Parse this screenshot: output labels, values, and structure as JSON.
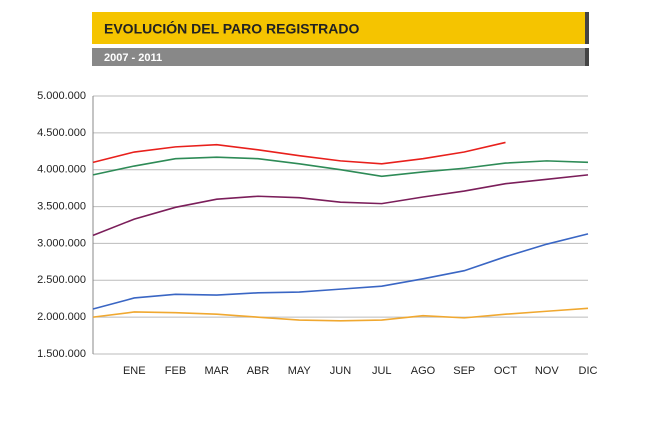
{
  "chart_data": {
    "type": "line",
    "title": "EVOLUCIÓN DEL PARO REGISTRADO",
    "subtitle": "2007 - 2011",
    "categories": [
      null,
      "ENE",
      "FEB",
      "MAR",
      "ABR",
      "MAY",
      "JUN",
      "JUL",
      "AGO",
      "SEP",
      "OCT",
      "NOV",
      "DIC"
    ],
    "series": [
      {
        "color": "#e8201c",
        "values": [
          4100000,
          4240000,
          4310000,
          4340000,
          4270000,
          4190000,
          4120000,
          4080000,
          4150000,
          4240000,
          4370000,
          null,
          null
        ]
      },
      {
        "color": "#2e8b57",
        "values": [
          3930000,
          4050000,
          4150000,
          4170000,
          4150000,
          4080000,
          4000000,
          3910000,
          3970000,
          4020000,
          4090000,
          4120000,
          4100000
        ]
      },
      {
        "color": "#7b1e5a",
        "values": [
          3110000,
          3330000,
          3490000,
          3600000,
          3640000,
          3620000,
          3560000,
          3540000,
          3630000,
          3710000,
          3810000,
          3870000,
          3930000
        ]
      },
      {
        "color": "#3a66c4",
        "values": [
          2110000,
          2260000,
          2310000,
          2300000,
          2330000,
          2340000,
          2380000,
          2420000,
          2520000,
          2630000,
          2820000,
          2990000,
          3130000
        ]
      },
      {
        "color": "#f0a830",
        "values": [
          2000000,
          2070000,
          2060000,
          2040000,
          2000000,
          1960000,
          1950000,
          1960000,
          2020000,
          1990000,
          2040000,
          2080000,
          2120000
        ]
      }
    ],
    "ylim": [
      1500000,
      5000000
    ],
    "yticks": [
      {
        "value": 1500000,
        "label": "1.500.000"
      },
      {
        "value": 2000000,
        "label": "2.000.000"
      },
      {
        "value": 2500000,
        "label": "2.500.000"
      },
      {
        "value": 3000000,
        "label": "3.000.000"
      },
      {
        "value": 3500000,
        "label": "3.500.000"
      },
      {
        "value": 4000000,
        "label": "4.000.000"
      },
      {
        "value": 4500000,
        "label": "4.500.000"
      },
      {
        "value": 5000000,
        "label": "5.000.000"
      }
    ],
    "grid": true
  }
}
